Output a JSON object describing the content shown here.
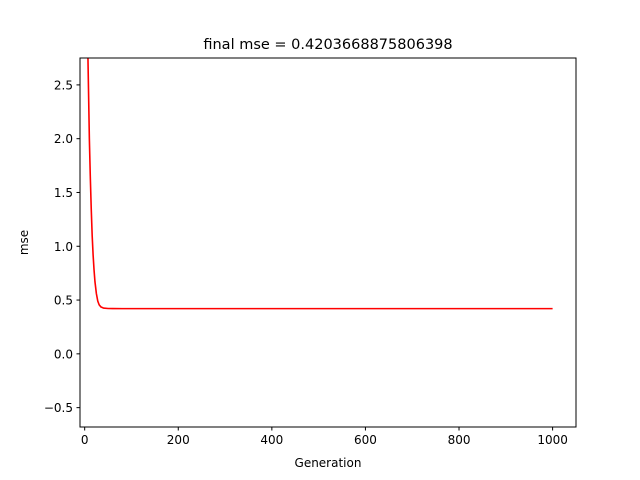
{
  "chart_data": {
    "type": "line",
    "title": "final mse = 0.4203668875806398",
    "xlabel": "Generation",
    "ylabel": "mse",
    "xlim": [
      -10,
      1050
    ],
    "ylim": [
      -0.68,
      2.75
    ],
    "xticks": [
      0,
      200,
      400,
      600,
      800,
      1000
    ],
    "xtick_labels": [
      "0",
      "200",
      "400",
      "600",
      "800",
      "1000"
    ],
    "yticks": [
      -0.5,
      0.0,
      0.5,
      1.0,
      1.5,
      2.0,
      2.5
    ],
    "ytick_labels": [
      "−0.5",
      "0.0",
      "0.5",
      "1.0",
      "1.5",
      "2.0",
      "2.5"
    ],
    "grid": false,
    "series": [
      {
        "color": "#ff0000",
        "x": [
          7,
          9,
          10,
          12,
          14,
          16,
          18,
          20,
          22,
          25,
          28,
          31,
          35,
          40,
          50,
          60,
          80,
          100,
          200,
          400,
          600,
          800,
          1000
        ],
        "y": [
          2.75,
          2.25,
          2.0,
          1.65,
          1.35,
          1.1,
          0.92,
          0.78,
          0.67,
          0.56,
          0.49,
          0.455,
          0.435,
          0.426,
          0.4215,
          0.4207,
          0.4204,
          0.42037,
          0.420367,
          0.420367,
          0.420367,
          0.420367,
          0.4203668875806398
        ]
      }
    ]
  }
}
